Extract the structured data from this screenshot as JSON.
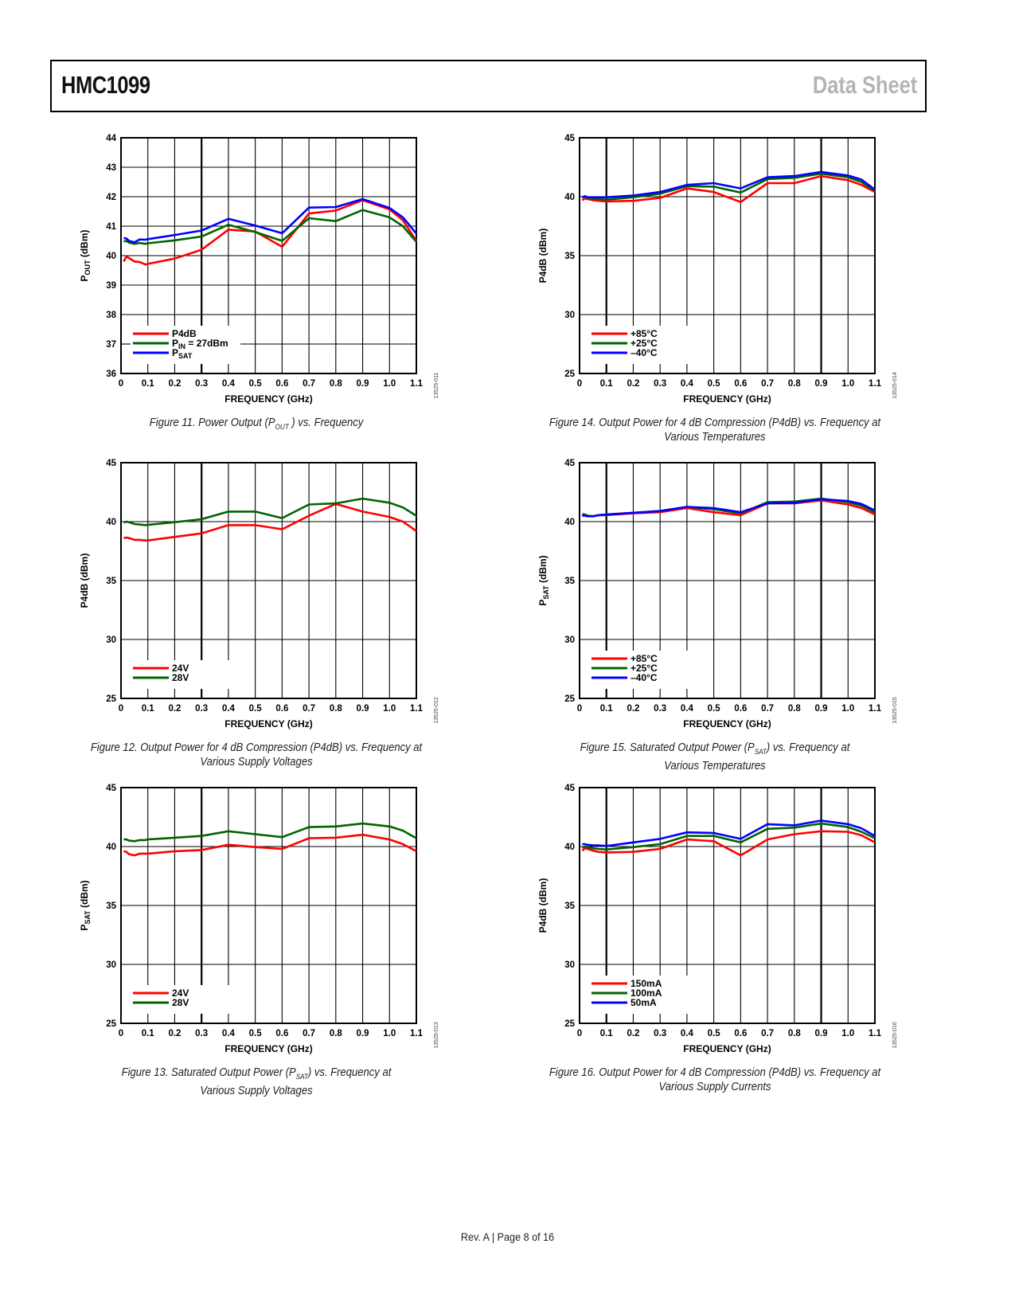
{
  "header": {
    "product": "HMC1099",
    "doc_type": "Data Sheet"
  },
  "footer": {
    "text": "Rev. A | Page 8 of 16"
  },
  "chart_data": [
    {
      "id": "fig11",
      "type": "line",
      "figure_id": "13525-011",
      "caption_line1": "Figure 11. Power Output (P",
      "caption_sub": "OUT",
      "caption_line1_end": " ) vs. Frequency",
      "caption_line2": "",
      "ylabel_main": "P",
      "ylabel_sub": "OUT",
      "ylabel_end": " (dBm)",
      "xlabel": "FREQUENCY (GHz)",
      "xlim": [
        0,
        1.1
      ],
      "ylim": [
        36,
        44
      ],
      "xticks": [
        "0",
        "0.1",
        "0.2",
        "0.3",
        "0.4",
        "0.5",
        "0.6",
        "0.7",
        "0.8",
        "0.9",
        "1.0",
        "1.1"
      ],
      "yticks": [
        "36",
        "37",
        "38",
        "39",
        "40",
        "41",
        "42",
        "43",
        "44"
      ],
      "ystep": 1,
      "grid": true,
      "legend_position": "bottom-left",
      "series": [
        {
          "name": "P4dB",
          "sub": "",
          "name_end": "",
          "color": "#ff0000",
          "x": [
            0.01,
            0.02,
            0.03,
            0.05,
            0.07,
            0.09,
            0.1,
            0.2,
            0.3,
            0.4,
            0.5,
            0.6,
            0.7,
            0.8,
            0.9,
            1.0,
            1.05,
            1.1
          ],
          "y": [
            39.8,
            39.97,
            39.92,
            39.8,
            39.78,
            39.7,
            39.72,
            39.9,
            40.2,
            40.88,
            40.82,
            40.3,
            41.43,
            41.53,
            41.88,
            41.57,
            41.2,
            40.5
          ]
        },
        {
          "name": "P",
          "sub": "IN",
          "name_end": " = 27dBm",
          "color": "#006400",
          "x": [
            0.01,
            0.02,
            0.03,
            0.05,
            0.07,
            0.09,
            0.1,
            0.2,
            0.3,
            0.4,
            0.5,
            0.6,
            0.7,
            0.8,
            0.9,
            1.0,
            1.05,
            1.1
          ],
          "y": [
            40.48,
            40.5,
            40.44,
            40.4,
            40.43,
            40.4,
            40.42,
            40.52,
            40.65,
            41.05,
            40.8,
            40.5,
            41.27,
            41.17,
            41.55,
            41.3,
            41.0,
            40.47
          ]
        },
        {
          "name": "P",
          "sub": "SAT",
          "name_end": "",
          "color": "#0000ff",
          "x": [
            0.01,
            0.02,
            0.03,
            0.05,
            0.07,
            0.09,
            0.1,
            0.2,
            0.3,
            0.4,
            0.5,
            0.6,
            0.7,
            0.8,
            0.9,
            1.0,
            1.05,
            1.1
          ],
          "y": [
            40.6,
            40.58,
            40.5,
            40.45,
            40.55,
            40.54,
            40.56,
            40.7,
            40.85,
            41.25,
            41.02,
            40.76,
            41.63,
            41.65,
            41.92,
            41.62,
            41.3,
            40.75
          ]
        }
      ]
    },
    {
      "id": "fig12",
      "type": "line",
      "figure_id": "13525-012",
      "caption_line1": "Figure 12. Output Power for 4 dB Compression (P4dB) vs. Frequency at",
      "caption_sub": "",
      "caption_line1_end": "",
      "caption_line2": "Various Supply Voltages",
      "ylabel_main": "P4dB (dBm)",
      "ylabel_sub": "",
      "ylabel_end": "",
      "xlabel": "FREQUENCY (GHz)",
      "xlim": [
        0,
        1.1
      ],
      "ylim": [
        25,
        45
      ],
      "xticks": [
        "0",
        "0.1",
        "0.2",
        "0.3",
        "0.4",
        "0.5",
        "0.6",
        "0.7",
        "0.8",
        "0.9",
        "1.0",
        "1.1"
      ],
      "yticks": [
        "25",
        "30",
        "35",
        "40",
        "45"
      ],
      "ystep": 5,
      "grid": true,
      "legend_position": "bottom-left",
      "series": [
        {
          "name": "24V",
          "sub": "",
          "name_end": "",
          "color": "#ff0000",
          "x": [
            0.01,
            0.02,
            0.03,
            0.05,
            0.07,
            0.09,
            0.1,
            0.2,
            0.3,
            0.4,
            0.5,
            0.6,
            0.7,
            0.8,
            0.9,
            1.0,
            1.05,
            1.1
          ],
          "y": [
            38.6,
            38.65,
            38.6,
            38.45,
            38.45,
            38.4,
            38.4,
            38.7,
            39.0,
            39.7,
            39.7,
            39.35,
            40.5,
            41.5,
            40.85,
            40.4,
            40.0,
            39.2
          ]
        },
        {
          "name": "28V",
          "sub": "",
          "name_end": "",
          "color": "#006400",
          "x": [
            0.01,
            0.02,
            0.03,
            0.05,
            0.07,
            0.09,
            0.1,
            0.2,
            0.3,
            0.4,
            0.5,
            0.6,
            0.7,
            0.8,
            0.9,
            1.0,
            1.05,
            1.1
          ],
          "y": [
            39.9,
            40.0,
            39.95,
            39.8,
            39.75,
            39.7,
            39.72,
            39.95,
            40.2,
            40.85,
            40.85,
            40.3,
            41.45,
            41.55,
            41.95,
            41.6,
            41.2,
            40.5
          ]
        }
      ]
    },
    {
      "id": "fig13",
      "type": "line",
      "figure_id": "13525-013",
      "caption_line1": "Figure 13. Saturated Output Power (P",
      "caption_sub": "SAT",
      "caption_line1_end": ") vs. Frequency at",
      "caption_line2": "Various Supply Voltages",
      "ylabel_main": "P",
      "ylabel_sub": "SAT",
      "ylabel_end": " (dBm)",
      "xlabel": "FREQUENCY (GHz)",
      "xlim": [
        0,
        1.1
      ],
      "ylim": [
        25,
        45
      ],
      "xticks": [
        "0",
        "0.1",
        "0.2",
        "0.3",
        "0.4",
        "0.5",
        "0.6",
        "0.7",
        "0.8",
        "0.9",
        "1.0",
        "1.1"
      ],
      "yticks": [
        "25",
        "30",
        "35",
        "40",
        "45"
      ],
      "ystep": 5,
      "grid": true,
      "legend_position": "bottom-left",
      "series": [
        {
          "name": "24V",
          "sub": "",
          "name_end": "",
          "color": "#ff0000",
          "x": [
            0.01,
            0.02,
            0.03,
            0.05,
            0.07,
            0.09,
            0.1,
            0.2,
            0.3,
            0.4,
            0.5,
            0.6,
            0.7,
            0.8,
            0.9,
            1.0,
            1.05,
            1.1
          ],
          "y": [
            39.6,
            39.55,
            39.35,
            39.25,
            39.4,
            39.4,
            39.4,
            39.6,
            39.7,
            40.15,
            39.95,
            39.8,
            40.7,
            40.75,
            41.0,
            40.6,
            40.2,
            39.6
          ]
        },
        {
          "name": "28V",
          "sub": "",
          "name_end": "",
          "color": "#006400",
          "x": [
            0.01,
            0.02,
            0.03,
            0.05,
            0.07,
            0.09,
            0.1,
            0.2,
            0.3,
            0.4,
            0.5,
            0.6,
            0.7,
            0.8,
            0.9,
            1.0,
            1.05,
            1.1
          ],
          "y": [
            40.6,
            40.6,
            40.5,
            40.45,
            40.55,
            40.55,
            40.6,
            40.75,
            40.9,
            41.3,
            41.05,
            40.8,
            41.65,
            41.7,
            41.95,
            41.7,
            41.35,
            40.7
          ]
        }
      ]
    },
    {
      "id": "fig14",
      "type": "line",
      "figure_id": "13525-014",
      "caption_line1": "Figure 14. Output Power for 4 dB Compression (P4dB) vs. Frequency at",
      "caption_sub": "",
      "caption_line1_end": "",
      "caption_line2": "Various Temperatures",
      "ylabel_main": "P4dB (dBm)",
      "ylabel_sub": "",
      "ylabel_end": "",
      "xlabel": "FREQUENCY (GHz)",
      "xlim": [
        0,
        1.1
      ],
      "ylim": [
        25,
        45
      ],
      "xticks": [
        "0",
        "0.1",
        "0.2",
        "0.3",
        "0.4",
        "0.5",
        "0.6",
        "0.7",
        "0.8",
        "0.9",
        "1.0",
        "1.1"
      ],
      "yticks": [
        "25",
        "30",
        "35",
        "40",
        "45"
      ],
      "ystep": 5,
      "grid": true,
      "legend_position": "bottom-left",
      "series": [
        {
          "name": "+85°C",
          "sub": "",
          "name_end": "",
          "color": "#ff0000",
          "x": [
            0.01,
            0.02,
            0.03,
            0.05,
            0.07,
            0.1,
            0.2,
            0.3,
            0.4,
            0.5,
            0.6,
            0.7,
            0.8,
            0.9,
            1.0,
            1.05,
            1.1
          ],
          "y": [
            39.7,
            39.85,
            39.8,
            39.7,
            39.65,
            39.6,
            39.65,
            39.9,
            40.7,
            40.4,
            39.55,
            41.15,
            41.15,
            41.75,
            41.4,
            41.0,
            40.4
          ]
        },
        {
          "name": "+25°C",
          "sub": "",
          "name_end": "",
          "color": "#006400",
          "x": [
            0.01,
            0.02,
            0.03,
            0.05,
            0.07,
            0.1,
            0.2,
            0.3,
            0.4,
            0.5,
            0.6,
            0.7,
            0.8,
            0.9,
            1.0,
            1.05,
            1.1
          ],
          "y": [
            39.95,
            40.0,
            39.9,
            39.85,
            39.8,
            39.75,
            39.95,
            40.25,
            40.9,
            40.85,
            40.35,
            41.5,
            41.6,
            41.95,
            41.65,
            41.25,
            40.5
          ]
        },
        {
          "name": "–40°C",
          "sub": "",
          "name_end": "",
          "color": "#0000ff",
          "x": [
            0.01,
            0.02,
            0.03,
            0.05,
            0.07,
            0.1,
            0.2,
            0.3,
            0.4,
            0.5,
            0.6,
            0.7,
            0.8,
            0.9,
            1.0,
            1.05,
            1.1
          ],
          "y": [
            39.95,
            40.05,
            39.95,
            39.95,
            39.95,
            39.95,
            40.1,
            40.4,
            41.0,
            41.15,
            40.7,
            41.65,
            41.75,
            42.1,
            41.8,
            41.45,
            40.6
          ]
        }
      ]
    },
    {
      "id": "fig15",
      "type": "line",
      "figure_id": "13525-015",
      "caption_line1": "Figure 15. Saturated Output Power (P",
      "caption_sub": "SAT",
      "caption_line1_end": ") vs. Frequency at",
      "caption_line2": "Various Temperatures",
      "ylabel_main": "P",
      "ylabel_sub": "SAT",
      "ylabel_end": " (dBm)",
      "xlabel": "FREQUENCY (GHz)",
      "xlim": [
        0,
        1.1
      ],
      "ylim": [
        25,
        45
      ],
      "xticks": [
        "0",
        "0.1",
        "0.2",
        "0.3",
        "0.4",
        "0.5",
        "0.6",
        "0.7",
        "0.8",
        "0.9",
        "1.0",
        "1.1"
      ],
      "yticks": [
        "25",
        "30",
        "35",
        "40",
        "45"
      ],
      "ystep": 5,
      "grid": true,
      "legend_position": "bottom-left",
      "series": [
        {
          "name": "+85°C",
          "sub": "",
          "name_end": "",
          "color": "#ff0000",
          "x": [
            0.01,
            0.02,
            0.03,
            0.05,
            0.07,
            0.1,
            0.2,
            0.3,
            0.4,
            0.5,
            0.6,
            0.7,
            0.8,
            0.9,
            1.0,
            1.05,
            1.1
          ],
          "y": [
            40.5,
            40.55,
            40.5,
            40.45,
            40.55,
            40.55,
            40.7,
            40.8,
            41.15,
            40.8,
            40.55,
            41.55,
            41.55,
            41.8,
            41.45,
            41.15,
            40.6
          ]
        },
        {
          "name": "+25°C",
          "sub": "",
          "name_end": "",
          "color": "#006400",
          "x": [
            0.01,
            0.02,
            0.03,
            0.05,
            0.07,
            0.1,
            0.2,
            0.3,
            0.4,
            0.5,
            0.6,
            0.7,
            0.8,
            0.9,
            1.0,
            1.05,
            1.1
          ],
          "y": [
            40.65,
            40.6,
            40.5,
            40.45,
            40.55,
            40.6,
            40.75,
            40.9,
            41.25,
            41.05,
            40.7,
            41.65,
            41.7,
            41.95,
            41.65,
            41.35,
            40.8
          ]
        },
        {
          "name": "–40°C",
          "sub": "",
          "name_end": "",
          "color": "#0000ff",
          "x": [
            0.01,
            0.02,
            0.03,
            0.05,
            0.07,
            0.1,
            0.2,
            0.3,
            0.4,
            0.5,
            0.6,
            0.7,
            0.8,
            0.9,
            1.0,
            1.05,
            1.1
          ],
          "y": [
            40.5,
            40.5,
            40.45,
            40.45,
            40.55,
            40.6,
            40.75,
            40.9,
            41.25,
            41.15,
            40.8,
            41.55,
            41.6,
            41.9,
            41.75,
            41.5,
            40.95
          ]
        }
      ]
    },
    {
      "id": "fig16",
      "type": "line",
      "figure_id": "13525-016",
      "caption_line1": "Figure 16. Output Power for 4 dB Compression (P4dB) vs. Frequency at",
      "caption_sub": "",
      "caption_line1_end": "",
      "caption_line2": "Various Supply Currents",
      "ylabel_main": "P4dB (dBm)",
      "ylabel_sub": "",
      "ylabel_end": "",
      "xlabel": "FREQUENCY (GHz)",
      "xlim": [
        0,
        1.1
      ],
      "ylim": [
        25,
        45
      ],
      "xticks": [
        "0",
        "0.1",
        "0.2",
        "0.3",
        "0.4",
        "0.5",
        "0.6",
        "0.7",
        "0.8",
        "0.9",
        "1.0",
        "1.1"
      ],
      "yticks": [
        "25",
        "30",
        "35",
        "40",
        "45"
      ],
      "ystep": 5,
      "grid": true,
      "legend_position": "bottom-left",
      "series": [
        {
          "name": "150mA",
          "sub": "",
          "name_end": "",
          "color": "#ff0000",
          "x": [
            0.01,
            0.02,
            0.03,
            0.05,
            0.07,
            0.1,
            0.2,
            0.3,
            0.4,
            0.5,
            0.6,
            0.7,
            0.8,
            0.9,
            1.0,
            1.05,
            1.1
          ],
          "y": [
            39.65,
            39.85,
            39.8,
            39.65,
            39.55,
            39.5,
            39.55,
            39.8,
            40.6,
            40.45,
            39.25,
            40.6,
            41.05,
            41.3,
            41.25,
            40.95,
            40.35
          ]
        },
        {
          "name": "100mA",
          "sub": "",
          "name_end": "",
          "color": "#006400",
          "x": [
            0.01,
            0.02,
            0.03,
            0.05,
            0.07,
            0.1,
            0.2,
            0.3,
            0.4,
            0.5,
            0.6,
            0.7,
            0.8,
            0.9,
            1.0,
            1.05,
            1.1
          ],
          "y": [
            39.9,
            40.0,
            39.95,
            39.85,
            39.8,
            39.75,
            39.95,
            40.2,
            40.9,
            40.9,
            40.35,
            41.5,
            41.6,
            41.95,
            41.65,
            41.25,
            40.7
          ]
        },
        {
          "name": "50mA",
          "sub": "",
          "name_end": "",
          "color": "#0000ff",
          "x": [
            0.01,
            0.02,
            0.03,
            0.05,
            0.07,
            0.1,
            0.2,
            0.3,
            0.4,
            0.5,
            0.6,
            0.7,
            0.8,
            0.9,
            1.0,
            1.05,
            1.1
          ],
          "y": [
            40.2,
            40.2,
            40.15,
            40.1,
            40.1,
            40.05,
            40.35,
            40.65,
            41.2,
            41.15,
            40.65,
            41.9,
            41.8,
            42.2,
            41.9,
            41.55,
            40.9
          ]
        }
      ]
    }
  ]
}
